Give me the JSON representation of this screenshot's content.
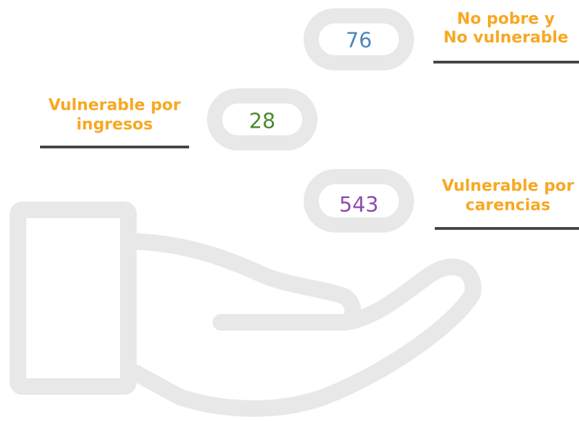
{
  "items": [
    {
      "label": [
        "No pobre y",
        "No vulnerable"
      ],
      "value": 76
    },
    {
      "label": [
        "Vulnerable por",
        "ingresos"
      ],
      "value": 28
    },
    {
      "label": [
        "Vulnerable por",
        "carencias"
      ],
      "value": 543
    }
  ]
}
